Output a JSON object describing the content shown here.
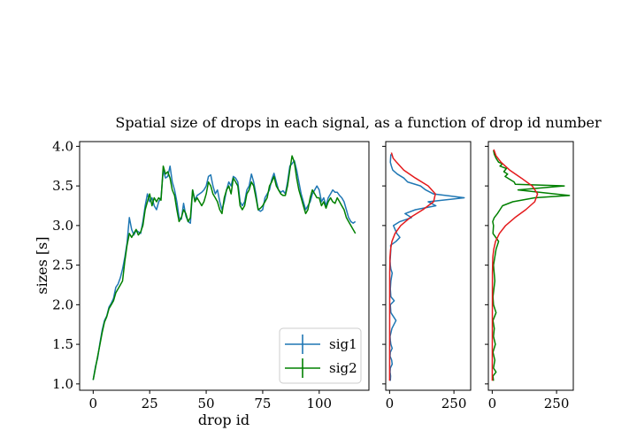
{
  "chart_data": [
    {
      "type": "line",
      "title": "Spatial size of drops in each signal, as a function of drop id number",
      "xlabel": "drop id",
      "ylabel": "sizes [s]",
      "xlim": [
        -6,
        122
      ],
      "ylim": [
        0.92,
        4.06
      ],
      "x_ticks": [
        "0",
        "25",
        "50",
        "75",
        "100"
      ],
      "y_ticks": [
        "1.0",
        "1.5",
        "2.0",
        "2.5",
        "3.0",
        "3.5",
        "4.0"
      ],
      "legend_position": "lower right",
      "grid": false,
      "series": [
        {
          "name": "sig1",
          "color": "#1f77b4",
          "x": [
            0,
            1,
            2,
            3,
            4,
            5,
            6,
            7,
            8,
            9,
            10,
            11,
            12,
            13,
            14,
            15,
            16,
            17,
            18,
            19,
            20,
            21,
            22,
            23,
            24,
            25,
            26,
            27,
            28,
            29,
            30,
            31,
            32,
            33,
            34,
            35,
            36,
            37,
            38,
            39,
            40,
            41,
            42,
            43,
            44,
            45,
            46,
            47,
            48,
            49,
            50,
            51,
            52,
            53,
            54,
            55,
            56,
            57,
            58,
            59,
            60,
            61,
            62,
            63,
            64,
            65,
            66,
            67,
            68,
            69,
            70,
            71,
            72,
            73,
            74,
            75,
            76,
            77,
            78,
            79,
            80,
            81,
            82,
            83,
            84,
            85,
            86,
            87,
            88,
            89,
            90,
            91,
            92,
            93,
            94,
            95,
            96,
            97,
            98,
            99,
            100,
            101,
            102,
            103,
            104,
            105,
            106,
            107,
            108,
            109,
            110,
            111,
            112,
            113,
            114,
            115,
            116
          ],
          "values": [
            1.05,
            1.22,
            1.33,
            1.52,
            1.68,
            1.8,
            1.86,
            1.97,
            2.02,
            2.08,
            2.22,
            2.26,
            2.34,
            2.45,
            2.6,
            2.78,
            3.1,
            2.95,
            2.88,
            2.94,
            2.92,
            2.9,
            3.05,
            3.25,
            3.4,
            3.3,
            3.35,
            3.25,
            3.2,
            3.3,
            3.35,
            3.7,
            3.6,
            3.62,
            3.75,
            3.55,
            3.45,
            3.3,
            3.1,
            3.08,
            3.28,
            3.12,
            3.05,
            3.03,
            3.45,
            3.32,
            3.38,
            3.4,
            3.42,
            3.45,
            3.5,
            3.62,
            3.64,
            3.5,
            3.4,
            3.45,
            3.3,
            3.2,
            3.3,
            3.45,
            3.55,
            3.5,
            3.62,
            3.6,
            3.55,
            3.3,
            3.25,
            3.3,
            3.45,
            3.5,
            3.65,
            3.55,
            3.4,
            3.2,
            3.18,
            3.2,
            3.35,
            3.4,
            3.45,
            3.58,
            3.66,
            3.55,
            3.45,
            3.42,
            3.44,
            3.4,
            3.55,
            3.75,
            3.78,
            3.82,
            3.7,
            3.55,
            3.4,
            3.3,
            3.2,
            3.25,
            3.3,
            3.4,
            3.45,
            3.5,
            3.45,
            3.3,
            3.35,
            3.25,
            3.35,
            3.4,
            3.45,
            3.42,
            3.42,
            3.38,
            3.35,
            3.3,
            3.2,
            3.1,
            3.05,
            3.03,
            3.05
          ]
        },
        {
          "name": "sig2",
          "color": "#008000",
          "x": [
            0,
            1,
            2,
            3,
            4,
            5,
            6,
            7,
            8,
            9,
            10,
            11,
            12,
            13,
            14,
            15,
            16,
            17,
            18,
            19,
            20,
            21,
            22,
            23,
            24,
            25,
            26,
            27,
            28,
            29,
            30,
            31,
            32,
            33,
            34,
            35,
            36,
            37,
            38,
            39,
            40,
            41,
            42,
            43,
            44,
            45,
            46,
            47,
            48,
            49,
            50,
            51,
            52,
            53,
            54,
            55,
            56,
            57,
            58,
            59,
            60,
            61,
            62,
            63,
            64,
            65,
            66,
            67,
            68,
            69,
            70,
            71,
            72,
            73,
            74,
            75,
            76,
            77,
            78,
            79,
            80,
            81,
            82,
            83,
            84,
            85,
            86,
            87,
            88,
            89,
            90,
            91,
            92,
            93,
            94,
            95,
            96,
            97,
            98,
            99,
            100,
            101,
            102,
            103,
            104,
            105,
            106,
            107,
            108,
            109,
            110,
            111,
            112,
            113,
            114,
            115,
            116
          ],
          "values": [
            1.05,
            1.2,
            1.35,
            1.5,
            1.65,
            1.78,
            1.85,
            1.95,
            2.0,
            2.05,
            2.15,
            2.2,
            2.25,
            2.3,
            2.55,
            2.75,
            2.9,
            2.85,
            2.9,
            2.95,
            2.88,
            2.92,
            3.0,
            3.2,
            3.3,
            3.4,
            3.25,
            3.35,
            3.3,
            3.35,
            3.32,
            3.75,
            3.65,
            3.68,
            3.6,
            3.45,
            3.38,
            3.2,
            3.05,
            3.1,
            3.2,
            3.15,
            3.05,
            3.1,
            3.45,
            3.3,
            3.35,
            3.3,
            3.25,
            3.3,
            3.4,
            3.55,
            3.5,
            3.4,
            3.35,
            3.3,
            3.2,
            3.15,
            3.35,
            3.45,
            3.5,
            3.4,
            3.6,
            3.55,
            3.5,
            3.25,
            3.2,
            3.25,
            3.4,
            3.45,
            3.55,
            3.5,
            3.35,
            3.2,
            3.22,
            3.25,
            3.3,
            3.35,
            3.5,
            3.55,
            3.62,
            3.5,
            3.45,
            3.4,
            3.38,
            3.38,
            3.5,
            3.7,
            3.88,
            3.8,
            3.6,
            3.45,
            3.35,
            3.25,
            3.15,
            3.2,
            3.35,
            3.45,
            3.4,
            3.35,
            3.35,
            3.25,
            3.3,
            3.22,
            3.3,
            3.35,
            3.3,
            3.28,
            3.35,
            3.3,
            3.25,
            3.2,
            3.1,
            3.05,
            3.0,
            2.95,
            2.9
          ]
        }
      ]
    },
    {
      "type": "line",
      "x_ticks": [
        "0",
        "250"
      ],
      "xlim": [
        -15,
        315
      ],
      "ylim": [
        0.92,
        4.06
      ],
      "series": [
        {
          "color": "#1f77b4",
          "x": [
            3,
            4,
            2,
            3,
            10,
            8,
            2,
            3,
            10,
            5,
            3,
            2,
            9,
            25,
            5,
            3,
            18,
            5,
            3,
            5,
            10,
            5,
            3,
            2,
            3,
            5,
            4,
            25,
            40,
            28,
            15,
            40,
            85,
            60,
            100,
            180,
            150,
            290,
            170,
            140,
            120,
            70,
            55,
            30,
            12,
            7,
            3,
            5
          ],
          "y": [
            1.04,
            1.1,
            1.15,
            1.2,
            1.25,
            1.3,
            1.35,
            1.4,
            1.45,
            1.5,
            1.55,
            1.6,
            1.7,
            1.8,
            1.9,
            2.0,
            2.05,
            2.1,
            2.2,
            2.3,
            2.4,
            2.45,
            2.5,
            2.55,
            2.6,
            2.7,
            2.75,
            2.8,
            2.85,
            2.9,
            3.0,
            3.05,
            3.1,
            3.15,
            3.2,
            3.25,
            3.3,
            3.35,
            3.4,
            3.45,
            3.5,
            3.55,
            3.6,
            3.65,
            3.7,
            3.75,
            3.8,
            3.9
          ]
        },
        {
          "color": "#e41a1c",
          "x": [
            0,
            0.5,
            1.4,
            3.8,
            9.2,
            21,
            43,
            80,
            129,
            171,
            178,
            150,
            100,
            55,
            27,
            14,
            7
          ],
          "y": [
            1.04,
            2.4,
            2.6,
            2.7,
            2.8,
            2.9,
            3.0,
            3.1,
            3.2,
            3.3,
            3.4,
            3.5,
            3.6,
            3.7,
            3.8,
            3.85,
            3.92
          ]
        }
      ]
    },
    {
      "type": "line",
      "x_ticks": [
        "0",
        "250"
      ],
      "xlim": [
        -15,
        315
      ],
      "ylim": [
        0.92,
        4.06
      ],
      "series": [
        {
          "color": "#008000",
          "x": [
            5,
            3,
            15,
            5,
            10,
            3,
            12,
            5,
            8,
            3,
            15,
            5,
            3,
            10,
            5,
            15,
            25,
            3,
            5,
            2,
            8,
            20,
            30,
            40,
            80,
            165,
            300,
            100,
            280,
            90,
            85,
            70,
            50,
            60,
            45,
            55,
            30,
            40,
            25,
            15,
            8,
            5
          ],
          "y": [
            1.04,
            1.1,
            1.15,
            1.2,
            1.3,
            1.4,
            1.5,
            1.6,
            1.7,
            1.8,
            1.9,
            2.0,
            2.1,
            2.3,
            2.5,
            2.7,
            2.8,
            2.9,
            3.0,
            3.05,
            3.1,
            3.15,
            3.2,
            3.25,
            3.3,
            3.35,
            3.38,
            3.45,
            3.5,
            3.52,
            3.55,
            3.58,
            3.62,
            3.65,
            3.68,
            3.72,
            3.75,
            3.78,
            3.8,
            3.85,
            3.9,
            3.95
          ]
        },
        {
          "color": "#e41a1c",
          "x": [
            0,
            0.8,
            2.2,
            5.8,
            13,
            28,
            52,
            88,
            130,
            165,
            176,
            155,
            113,
            68,
            34,
            15,
            6
          ],
          "y": [
            1.04,
            2.4,
            2.6,
            2.7,
            2.8,
            2.9,
            3.0,
            3.1,
            3.2,
            3.3,
            3.4,
            3.5,
            3.6,
            3.7,
            3.8,
            3.88,
            3.96
          ]
        }
      ]
    }
  ]
}
